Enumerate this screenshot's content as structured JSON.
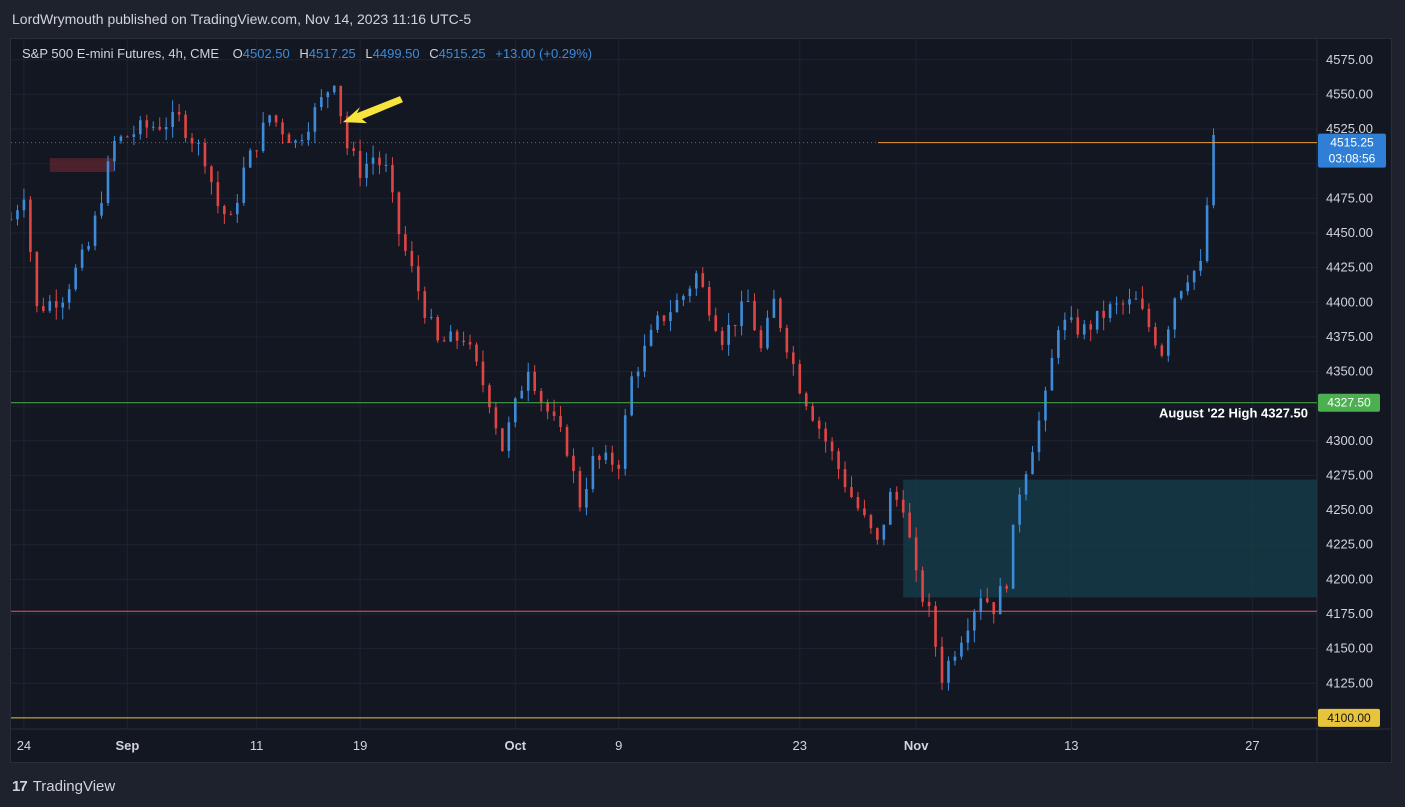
{
  "header": {
    "publish_text": "LordWrymouth published on TradingView.com, Nov 14, 2023 11:16 UTC-5"
  },
  "legend": {
    "symbol": "S&P 500 E-mini Futures, 4h, CME",
    "o_label": "O",
    "o_value": "4502.50",
    "h_label": "H",
    "h_value": "4517.25",
    "l_label": "L",
    "l_value": "4499.50",
    "c_label": "C",
    "c_value": "4515.25",
    "change": "+13.00 (+0.29%)"
  },
  "footer": {
    "brand": "TradingView",
    "logo_text": "17"
  },
  "colors": {
    "up": "#3d8bd9",
    "down": "#e04545",
    "grid": "#1f2330",
    "zone": "#163a46",
    "green_line": "#4caf50",
    "red_line": "#ef5350",
    "orange_line": "#f09a37",
    "yellow_line": "#e8c33c",
    "arrow": "#f7e43d"
  },
  "chart_data": {
    "type": "candlestick",
    "title": "S&P 500 E-mini Futures, 4h, CME",
    "ylim": [
      4092,
      4590
    ],
    "y_ticks": [
      4125,
      4150,
      4175,
      4200,
      4225,
      4250,
      4275,
      4300,
      4325,
      4350,
      4375,
      4400,
      4425,
      4450,
      4475,
      4500,
      4525,
      4550,
      4575
    ],
    "y_tick_labels": [
      "4125.00",
      "4150.00",
      "4175.00",
      "4200.00",
      "4225.00",
      "4250.00",
      "4275.00",
      "4300.00",
      "4325.00",
      "4350.00",
      "4375.00",
      "4400.00",
      "4425.00",
      "4450.00",
      "4475.00",
      "4500.00",
      "4525.00",
      "4550.00",
      "4575.00"
    ],
    "x_labels": [
      "24",
      "Sep",
      "11",
      "19",
      "Oct",
      "9",
      "23",
      "Nov",
      "13",
      "27"
    ],
    "x_label_dates": [
      "2023-08-24",
      "2023-09-01",
      "2023-09-11",
      "2023-09-19",
      "2023-10-01",
      "2023-10-09",
      "2023-10-23",
      "2023-11-01",
      "2023-11-13",
      "2023-11-27"
    ],
    "x_range": [
      "2023-08-23",
      "2023-12-02"
    ],
    "path": [
      [
        "2023-08-23",
        4460
      ],
      [
        "2023-08-24",
        4480
      ],
      [
        "2023-08-25",
        4395
      ],
      [
        "2023-08-27",
        4405
      ],
      [
        "2023-08-29",
        4440
      ],
      [
        "2023-08-31",
        4515
      ],
      [
        "2023-09-02",
        4525
      ],
      [
        "2023-09-05",
        4532
      ],
      [
        "2023-09-07",
        4505
      ],
      [
        "2023-09-08",
        4470
      ],
      [
        "2023-09-09",
        4458
      ],
      [
        "2023-09-10",
        4495
      ],
      [
        "2023-09-12",
        4535
      ],
      [
        "2023-09-14",
        4515
      ],
      [
        "2023-09-16",
        4545
      ],
      [
        "2023-09-17",
        4562
      ],
      [
        "2023-09-18",
        4512
      ],
      [
        "2023-09-19",
        4495
      ],
      [
        "2023-09-20",
        4505
      ],
      [
        "2023-09-21",
        4495
      ],
      [
        "2023-09-22",
        4450
      ],
      [
        "2023-09-24",
        4395
      ],
      [
        "2023-09-25",
        4370
      ],
      [
        "2023-09-27",
        4375
      ],
      [
        "2023-09-29",
        4330
      ],
      [
        "2023-09-30",
        4295
      ],
      [
        "2023-10-02",
        4355
      ],
      [
        "2023-10-03",
        4330
      ],
      [
        "2023-10-05",
        4295
      ],
      [
        "2023-10-06",
        4255
      ],
      [
        "2023-10-07",
        4285
      ],
      [
        "2023-10-09",
        4285
      ],
      [
        "2023-10-10",
        4345
      ],
      [
        "2023-10-12",
        4385
      ],
      [
        "2023-10-14",
        4405
      ],
      [
        "2023-10-15",
        4420
      ],
      [
        "2023-10-17",
        4375
      ],
      [
        "2023-10-19",
        4400
      ],
      [
        "2023-10-20",
        4365
      ],
      [
        "2023-10-21",
        4400
      ],
      [
        "2023-10-23",
        4340
      ],
      [
        "2023-10-25",
        4300
      ],
      [
        "2023-10-27",
        4260
      ],
      [
        "2023-10-29",
        4225
      ],
      [
        "2023-10-30",
        4260
      ],
      [
        "2023-10-31",
        4255
      ],
      [
        "2023-11-01",
        4200
      ],
      [
        "2023-11-02",
        4175
      ],
      [
        "2023-11-03",
        4130
      ],
      [
        "2023-11-05",
        4170
      ],
      [
        "2023-11-06",
        4190
      ],
      [
        "2023-11-07",
        4180
      ],
      [
        "2023-11-08",
        4200
      ],
      [
        "2023-11-09",
        4265
      ],
      [
        "2023-11-11",
        4330
      ],
      [
        "2023-11-12",
        4385
      ],
      [
        "2023-11-14",
        4380
      ],
      [
        "2023-11-16",
        4395
      ],
      [
        "2023-11-18",
        4400
      ],
      [
        "2023-11-20",
        4365
      ],
      [
        "2023-11-21",
        4405
      ],
      [
        "2023-11-22",
        4420
      ],
      [
        "2023-11-23",
        4425
      ],
      [
        "2023-11-24",
        4515
      ]
    ],
    "horizontal_levels": [
      {
        "value": 4327.5,
        "label": "4327.50",
        "annotation": "August '22 High 4327.50",
        "color": "#4caf50"
      },
      {
        "value": 4177,
        "color": "#ef5350"
      },
      {
        "value": 4515.25,
        "label": "4515.25",
        "timer": "03:08:56",
        "color": "#f09a37"
      },
      {
        "value": 4100.0,
        "label": "4100.00",
        "color": "#e8c33c"
      }
    ],
    "zone": {
      "from": "2023-10-31",
      "to": "2023-12-02",
      "y_low": 4187,
      "y_high": 4272
    },
    "small_zone": {
      "from": "2023-08-26",
      "to": "2023-08-31",
      "y_low": 4494,
      "y_high": 4504
    }
  }
}
